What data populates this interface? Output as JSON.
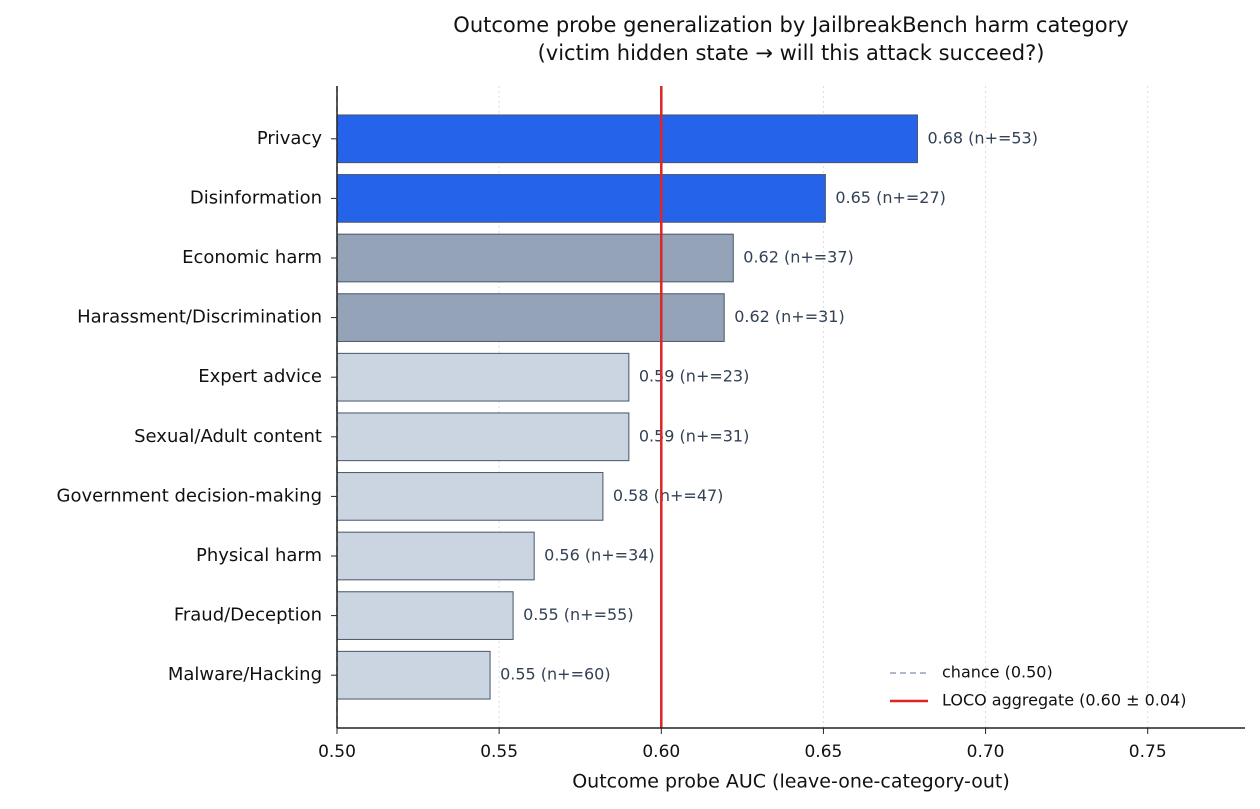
{
  "chart_data": {
    "type": "barh",
    "title": "Outcome probe generalization by JailbreakBench harm category",
    "subtitle": "(victim hidden state → will this attack succeed?)",
    "xlabel": "Outcome probe AUC (leave-one-category-out)",
    "categories": [
      "Privacy",
      "Disinformation",
      "Economic harm",
      "Harassment/Discrimination",
      "Expert advice",
      "Sexual/Adult content",
      "Government decision-making",
      "Physical harm",
      "Fraud/Deception",
      "Malware/Hacking"
    ],
    "values": [
      0.679,
      0.6506,
      0.6222,
      0.6194,
      0.59,
      0.59,
      0.582,
      0.5608,
      0.5543,
      0.5472
    ],
    "value_labels": [
      "0.68 (n+=53)",
      "0.65 (n+=27)",
      "0.62 (n+=37)",
      "0.62 (n+=31)",
      "0.59 (n+=23)",
      "0.59 (n+=31)",
      "0.58 (n+=47)",
      "0.56 (n+=34)",
      "0.55 (n+=55)",
      "0.55 (n+=60)"
    ],
    "colors": [
      "#2563eb",
      "#2563eb",
      "#94a3b8",
      "#94a3b8",
      "#cbd5e1",
      "#cbd5e1",
      "#cbd5e1",
      "#cbd5e1",
      "#cbd5e1",
      "#cbd5e1"
    ],
    "xlim": [
      0.5,
      0.78
    ],
    "xticks": [
      {
        "value": 0.5,
        "label": "0.50"
      },
      {
        "value": 0.55,
        "label": "0.55"
      },
      {
        "value": 0.6,
        "label": "0.60"
      },
      {
        "value": 0.65,
        "label": "0.65"
      },
      {
        "value": 0.7,
        "label": "0.70"
      },
      {
        "value": 0.75,
        "label": "0.75"
      }
    ],
    "grid": true,
    "legend": "lower right",
    "reference_lines": [
      {
        "name": "chance (0.50)",
        "value": 0.5,
        "color": "#94a3b8",
        "style": "dashed"
      },
      {
        "name": "LOCO aggregate (0.60 ± 0.04)",
        "value": 0.6,
        "color": "#dc2626",
        "style": "solid"
      }
    ]
  }
}
